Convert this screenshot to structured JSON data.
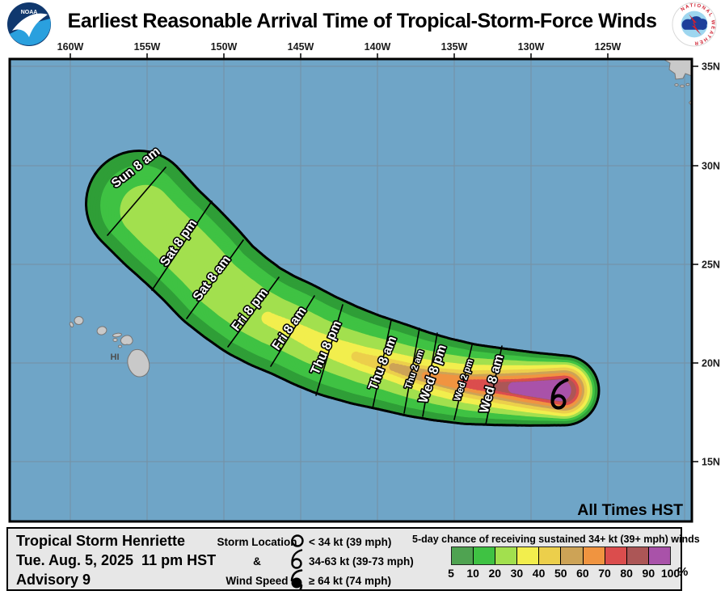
{
  "header": {
    "title": "Earliest Reasonable Arrival Time of Tropical-Storm-Force Winds",
    "noaa_logo_text": "NOAA",
    "nws_logo_text": "NATIONAL WEATHER SERVICE"
  },
  "map": {
    "top_tick_labels": [
      "160W",
      "155W",
      "150W",
      "145W",
      "140W",
      "135W",
      "130W",
      "125W"
    ],
    "right_tick_labels": [
      "35N",
      "30N",
      "25N",
      "20N",
      "15N"
    ],
    "hawaii_label": "HI",
    "all_times_note": "All Times HST",
    "arrival_labels": [
      "Sun 8 am",
      "Sat 8 pm",
      "Sat 8 am",
      "Fri 8 pm",
      "Fri 8 am",
      "Thu 8 pm",
      "Thu 8 am",
      "Thu 2 am",
      "Wed 8 pm",
      "Wed 2 pm",
      "Wed 8 am"
    ]
  },
  "info": {
    "storm_name": "Tropical Storm Henriette",
    "issued": "Tue. Aug. 5, 2025  11 pm HST",
    "advisory": "Advisory 9"
  },
  "location_legend": {
    "line1": "Storm Location",
    "line2": "&",
    "line3": "Wind Speed",
    "items": [
      {
        "icon": "open-circle-icon",
        "label": "< 34 kt (39 mph)"
      },
      {
        "icon": "tropical-storm-icon",
        "label": "34-63 kt (39-73 mph)"
      },
      {
        "icon": "hurricane-icon",
        "label": "≥ 64 kt (74 mph)"
      }
    ]
  },
  "prob_legend": {
    "title": "5-day chance of receiving sustained 34+ kt (39+ mph) winds",
    "tick_labels": [
      "5",
      "10",
      "20",
      "30",
      "40",
      "50",
      "60",
      "70",
      "80",
      "90",
      "100"
    ],
    "unit": "%",
    "colors": [
      "#4fa351",
      "#3fc243",
      "#a2e04e",
      "#f2ee4d",
      "#eccf4b",
      "#cda356",
      "#f09440",
      "#db4d4d",
      "#ac5656",
      "#a952a9"
    ]
  },
  "chart_data": {
    "type": "map-contours",
    "title": "Earliest Reasonable Arrival Time of Tropical-Storm-Force Winds",
    "storm": {
      "name": "Henriette",
      "classification": "Tropical Storm",
      "advisory": "9",
      "issued": "Tue. Aug. 5, 2025 11 pm HST",
      "symbol": "tropical-storm (34-63 kt)"
    },
    "arrival_isochrones_west_to_east": [
      "Sun 8 am",
      "Sat 8 pm",
      "Sat 8 am",
      "Fri 8 pm",
      "Fri 8 am",
      "Thu 8 pm",
      "Thu 8 am",
      "Thu 2 am",
      "Wed 8 pm",
      "Wed 2 pm",
      "Wed 8 am"
    ],
    "probability_scale_percent": [
      5,
      10,
      20,
      30,
      40,
      50,
      60,
      70,
      80,
      90,
      100
    ],
    "probability_colors": [
      "#4fa351",
      "#3fc243",
      "#a2e04e",
      "#f2ee4d",
      "#eccf4b",
      "#cda356",
      "#f09440",
      "#db4d4d",
      "#ac5656",
      "#a952a9"
    ],
    "lon_gridlines": [
      "160W",
      "155W",
      "150W",
      "145W",
      "140W",
      "135W",
      "130W",
      "125W"
    ],
    "lat_gridlines": [
      "35N",
      "30N",
      "25N",
      "20N",
      "15N"
    ],
    "time_zone_note": "All Times HST"
  }
}
